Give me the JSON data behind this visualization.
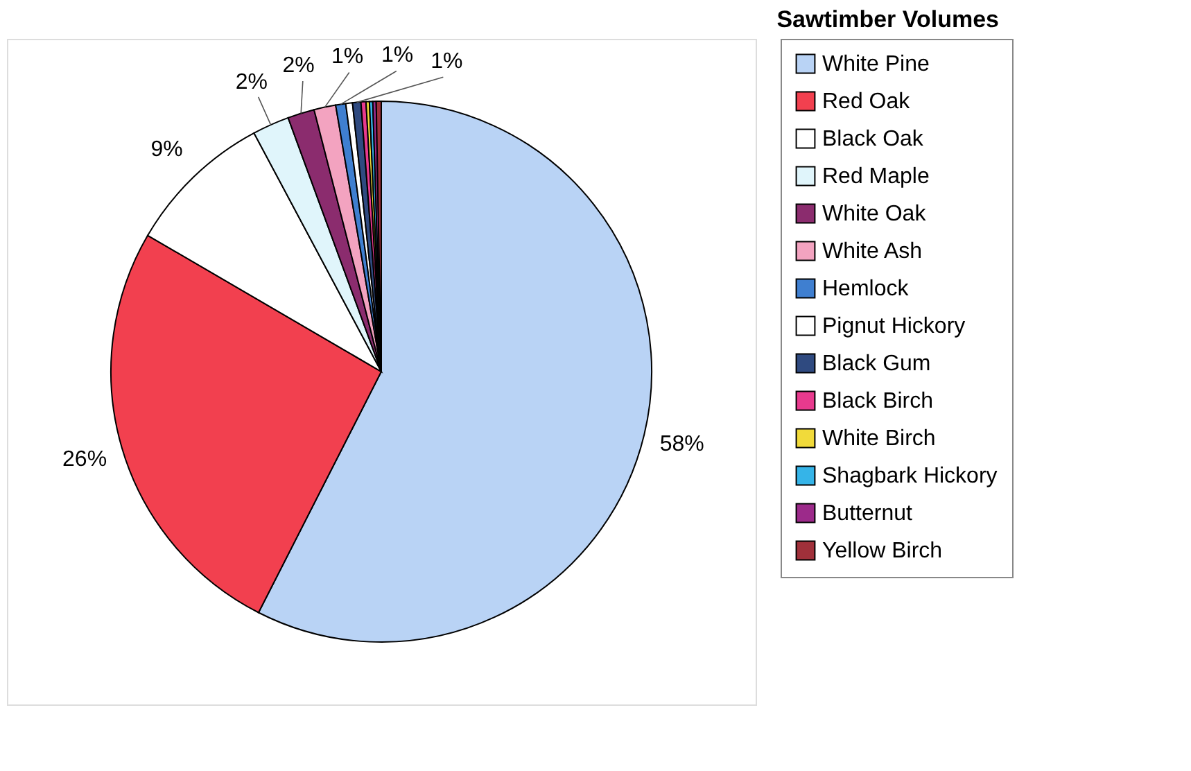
{
  "chart_data": {
    "type": "pie",
    "title": "Sawtimber Volumes",
    "categories": [
      "White Pine",
      "Red Oak",
      "Black Oak",
      "Red Maple",
      "White Oak",
      "White Ash",
      "Hemlock",
      "Pignut Hickory",
      "Black Gum",
      "Black Birch",
      "White Birch",
      "Shagbark Hickory",
      "Butternut",
      "Yellow Birch"
    ],
    "values": [
      57.5,
      25.9,
      8.8,
      2.2,
      1.6,
      1.3,
      0.6,
      0.4,
      0.5,
      0.3,
      0.2,
      0.2,
      0.2,
      0.3
    ],
    "value_labels": [
      "58%",
      "26%",
      "9%",
      "2%",
      "2%",
      "1%",
      "1%",
      null,
      "1%",
      null,
      null,
      null,
      null,
      null
    ],
    "colors": [
      "#b9d3f5",
      "#f2404f",
      "#ffffff",
      "#e0f5fb",
      "#8b2c6e",
      "#f3a3c0",
      "#3f7fd0",
      "#ffffff",
      "#2f4a80",
      "#e83a8e",
      "#f1da3a",
      "#35b4e8",
      "#9c2a8a",
      "#a0303a"
    ],
    "legend": "right"
  }
}
